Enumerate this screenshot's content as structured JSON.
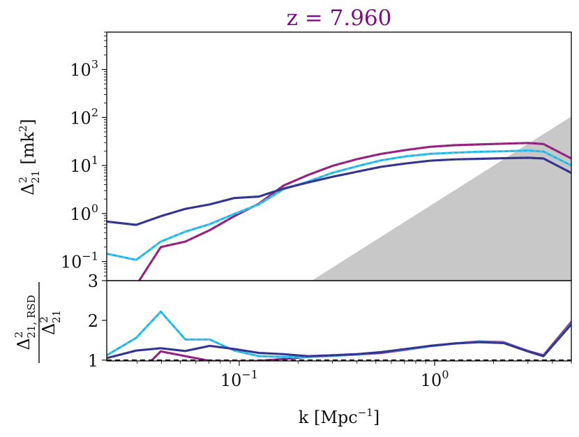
{
  "chart_data": [
    {
      "type": "line",
      "panel": "top",
      "title": "z = 7.960",
      "xscale": "log",
      "yscale": "log",
      "xlim": [
        0.021,
        5.0
      ],
      "ylim": [
        0.04,
        6000
      ],
      "ylabel": {
        "symbol": "Δ",
        "sup": "2",
        "sub": "21",
        "unit": "[mk",
        "unit_sup": "2",
        "unit_close": "]"
      },
      "yticks": [
        {
          "base": "10",
          "exp": "−1",
          "value": 0.1
        },
        {
          "base": "10",
          "exp": "0",
          "value": 1
        },
        {
          "base": "10",
          "exp": "1",
          "value": 10
        },
        {
          "base": "10",
          "exp": "2",
          "value": 100
        },
        {
          "base": "10",
          "exp": "3",
          "value": 1000
        }
      ],
      "shaded_region": {
        "color": "#c8c8c8",
        "description_points": [
          [
            0.235,
            0.04
          ],
          [
            5.0,
            105
          ]
        ]
      },
      "x": [
        0.021,
        0.0297,
        0.0397,
        0.053,
        0.0707,
        0.0943,
        0.126,
        0.168,
        0.224,
        0.299,
        0.399,
        0.532,
        0.71,
        0.948,
        1.265,
        1.689,
        2.254,
        3.0,
        3.6,
        5.0
      ],
      "series": [
        {
          "name": "magenta",
          "color": "#9b2a88",
          "values": [
            null,
            0.032,
            0.2,
            0.26,
            0.45,
            0.88,
            1.6,
            3.8,
            6.3,
            9.8,
            13.5,
            17.5,
            21.0,
            24.5,
            26.5,
            27.5,
            28.5,
            29.5,
            28.0,
            14.0
          ]
        },
        {
          "name": "cyan",
          "color": "#38c6f2",
          "values": [
            0.145,
            0.108,
            0.26,
            0.42,
            0.6,
            0.98,
            1.55,
            3.2,
            4.6,
            7.0,
            9.6,
            12.8,
            15.5,
            17.5,
            18.5,
            19.3,
            19.8,
            20.5,
            19.5,
            10.0
          ]
        },
        {
          "name": "navy",
          "color": "#3a3a96",
          "values": [
            0.68,
            0.58,
            0.88,
            1.25,
            1.55,
            2.1,
            2.25,
            3.3,
            4.4,
            5.8,
            7.4,
            9.4,
            11.0,
            12.6,
            13.4,
            13.8,
            14.2,
            14.5,
            14.0,
            7.0
          ]
        }
      ]
    },
    {
      "type": "line",
      "panel": "bottom",
      "xscale": "log",
      "yscale": "linear",
      "xlim": [
        0.021,
        5.0
      ],
      "ylim": [
        0.98,
        3.0
      ],
      "xlabel": {
        "text": "k [Mpc",
        "sup": "−1",
        "close": "]"
      },
      "xticks": [
        {
          "base": "10",
          "exp": "−1",
          "value": 0.1
        },
        {
          "base": "10",
          "exp": "0",
          "value": 1
        }
      ],
      "yticks": [
        {
          "label": "1",
          "value": 1
        },
        {
          "label": "2",
          "value": 2
        },
        {
          "label": "3",
          "value": 3
        }
      ],
      "ylabel": {
        "num_symbol": "Δ",
        "num_sup": "2",
        "num_sub": "21, RSD",
        "den_symbol": "Δ",
        "den_sup": "2",
        "den_sub": "21"
      },
      "reference_line": {
        "y": 1.0,
        "style": "dashed",
        "color": "#000000"
      },
      "x": [
        0.021,
        0.0297,
        0.0397,
        0.053,
        0.0707,
        0.0943,
        0.126,
        0.168,
        0.224,
        0.299,
        0.399,
        0.532,
        0.71,
        0.948,
        1.265,
        1.689,
        2.254,
        3.0,
        3.6,
        5.0
      ],
      "series": [
        {
          "name": "magenta",
          "color": "#9b2a88",
          "values": [
            null,
            0.6,
            1.22,
            1.1,
            0.98,
            0.97,
            0.98,
            1.03,
            1.08,
            1.11,
            1.14,
            1.18,
            1.26,
            1.35,
            1.42,
            1.47,
            1.45,
            1.23,
            1.12,
            1.96
          ]
        },
        {
          "name": "cyan",
          "color": "#38c6f2",
          "values": [
            1.12,
            1.56,
            2.22,
            1.52,
            1.52,
            1.24,
            1.1,
            1.08,
            1.08,
            1.11,
            1.14,
            1.2,
            1.27,
            1.35,
            1.42,
            1.46,
            1.44,
            1.22,
            1.1,
            1.92
          ]
        },
        {
          "name": "navy",
          "color": "#3a3a96",
          "values": [
            1.05,
            1.24,
            1.3,
            1.23,
            1.36,
            1.28,
            1.18,
            1.15,
            1.1,
            1.12,
            1.15,
            1.2,
            1.28,
            1.36,
            1.42,
            1.45,
            1.43,
            1.22,
            1.1,
            1.9
          ]
        }
      ]
    }
  ]
}
